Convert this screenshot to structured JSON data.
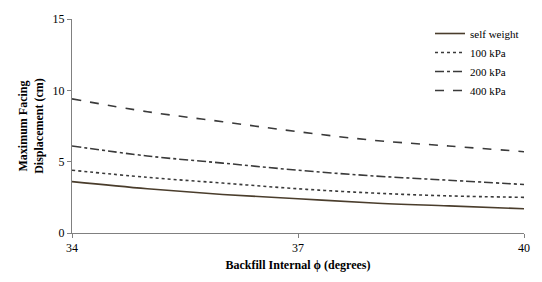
{
  "chart_data": {
    "type": "line",
    "x_label": "Backfill Internal ϕ (degrees)",
    "y_label": "Maximum Facing\nDisplacement (cm)",
    "x": [
      34,
      35,
      36,
      37,
      38,
      39,
      40
    ],
    "series": [
      {
        "name": "self weight",
        "color": "#4a3d2c",
        "line_style": "solid",
        "values": [
          3.6,
          3.1,
          2.7,
          2.4,
          2.1,
          1.9,
          1.7
        ]
      },
      {
        "name": "100 kPa",
        "color": "#3a3a3a",
        "line_style": "dotted",
        "values": [
          4.4,
          3.9,
          3.5,
          3.1,
          2.8,
          2.6,
          2.5
        ]
      },
      {
        "name": "200 kPa",
        "color": "#3a3a3a",
        "line_style": "dashdot",
        "values": [
          6.1,
          5.4,
          4.9,
          4.4,
          4.0,
          3.7,
          3.4
        ]
      },
      {
        "name": "400 kPa",
        "color": "#3a3a3a",
        "line_style": "dashed",
        "values": [
          9.4,
          8.5,
          7.8,
          7.1,
          6.5,
          6.1,
          5.7
        ]
      }
    ],
    "xlim": [
      34,
      40
    ],
    "xticks": [
      34,
      37,
      40
    ],
    "ylim": [
      0,
      15
    ],
    "yticks": [
      0,
      5,
      10,
      15
    ],
    "grid": false,
    "legend": "upper right"
  }
}
